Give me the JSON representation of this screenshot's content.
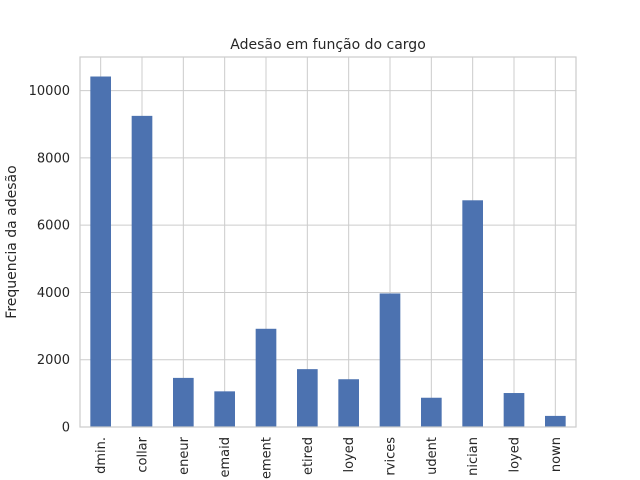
{
  "chart_data": {
    "type": "bar",
    "title": "Adesão em função do cargo",
    "xlabel": "",
    "ylabel": "Frequencia da adesão",
    "categories": [
      "admin.",
      "blue-collar",
      "entrepreneur",
      "housemaid",
      "management",
      "retired",
      "self-employed",
      "services",
      "student",
      "technician",
      "unemployed",
      "unknown"
    ],
    "visible_tick_labels": [
      "dmin.",
      "collar",
      "eneur",
      "emaid",
      "ement",
      "etired",
      "loyed",
      "rvices",
      "udent",
      "nician",
      "loyed",
      "nown"
    ],
    "values": [
      10420,
      9250,
      1460,
      1060,
      2920,
      1720,
      1420,
      3970,
      870,
      6740,
      1010,
      330
    ],
    "ylim": [
      0,
      11000
    ],
    "yticks": [
      0,
      2000,
      4000,
      6000,
      8000,
      10000
    ],
    "grid": true,
    "color": "#4c72b0"
  }
}
